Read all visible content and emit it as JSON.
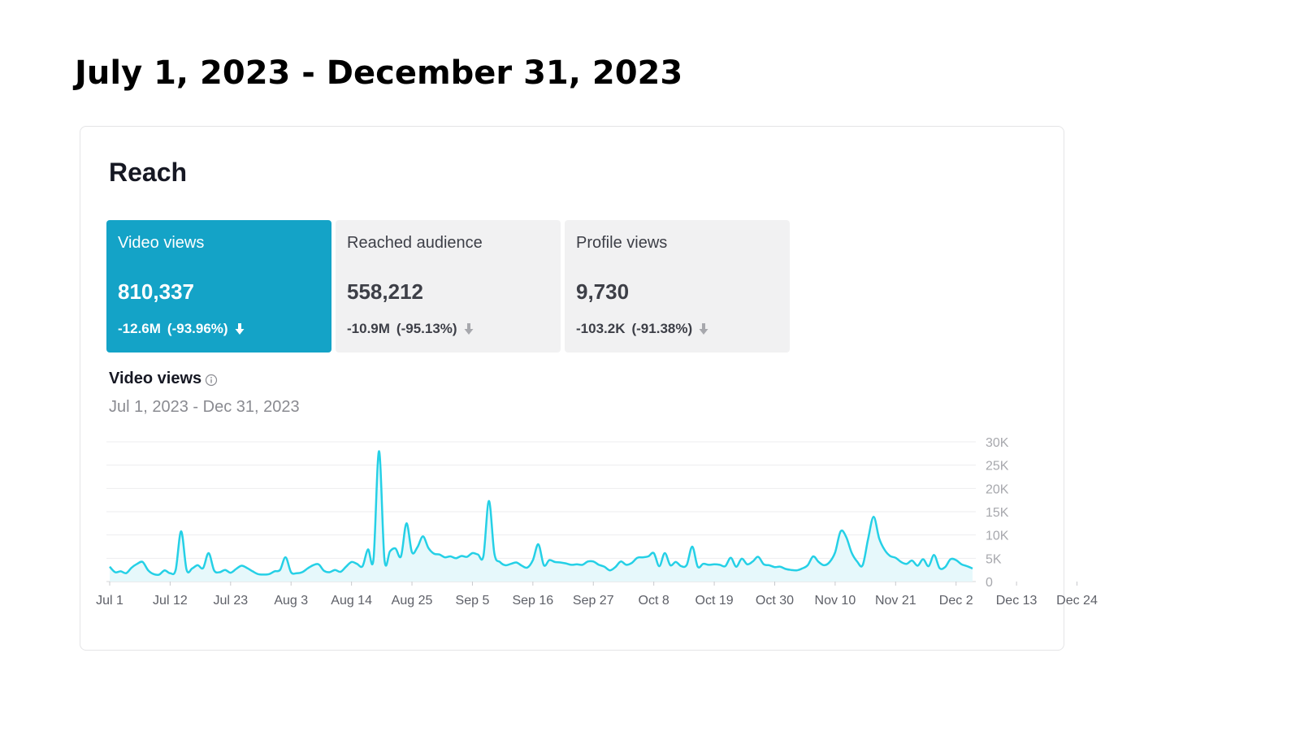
{
  "page": {
    "title": "July 1, 2023 - December 31, 2023"
  },
  "card": {
    "title": "Reach",
    "metrics": [
      {
        "label": "Video views",
        "value": "810,337",
        "change": "-12.6M",
        "change_pct": "(-93.96%)",
        "active": true
      },
      {
        "label": "Reached audience",
        "value": "558,212",
        "change": "-10.9M",
        "change_pct": "(-95.13%)",
        "active": false
      },
      {
        "label": "Profile views",
        "value": "9,730",
        "change": "-103.2K",
        "change_pct": "(-91.38%)",
        "active": false
      }
    ],
    "chart_title": "Video views",
    "chart_range": "Jul 1, 2023 - Dec 31, 2023"
  },
  "colors": {
    "accent": "#14a3c7",
    "line": "#25d0e6",
    "area": "#e6f8fb",
    "inactive_card": "#f1f1f2"
  },
  "icons": {
    "change_arrow": "arrow-down-icon",
    "info": "info-icon"
  },
  "chart_data": {
    "type": "area",
    "title": "Video views",
    "subtitle": "Jul 1, 2023 - Dec 31, 2023",
    "xlabel": "",
    "ylabel": "",
    "x_tick_labels": [
      "Jul 1",
      "Jul 12",
      "Jul 23",
      "Aug 3",
      "Aug 14",
      "Aug 25",
      "Sep 5",
      "Sep 16",
      "Sep 27",
      "Oct 8",
      "Oct 19",
      "Oct 30",
      "Nov 10",
      "Nov 21",
      "Dec 2",
      "Dec 13",
      "Dec 24"
    ],
    "y_tick_labels": [
      "0",
      "5K",
      "10K",
      "15K",
      "20K",
      "25K",
      "30K"
    ],
    "ylim": [
      0,
      30000
    ],
    "grid": true,
    "legend": "none",
    "series": [
      {
        "values": [
          3200,
          2000,
          2200,
          1800,
          3000,
          3800,
          4200,
          2400,
          1600,
          1500,
          2400,
          1800,
          2500,
          10800,
          2500,
          2800,
          3500,
          2900,
          6100,
          2400,
          2000,
          2500,
          1900,
          2700,
          3400,
          2900,
          2200,
          1600,
          1500,
          1600,
          2200,
          2500,
          5200,
          2000,
          1800,
          2000,
          2800,
          3500,
          3700,
          2300,
          2000,
          2500,
          2100,
          3200,
          4200,
          3800,
          3300,
          6900,
          4800,
          28000,
          4700,
          6500,
          7100,
          5400,
          12500,
          6300,
          7400,
          9700,
          7200,
          6000,
          5800,
          5200,
          5400,
          5000,
          5500,
          5300,
          6100,
          5800,
          5500,
          17300,
          6000,
          4200,
          3500,
          3800,
          4100,
          3400,
          3000,
          4600,
          8000,
          3500,
          4600,
          4200,
          4100,
          3900,
          3600,
          3700,
          3600,
          4300,
          4300,
          3600,
          3200,
          2400,
          3100,
          4300,
          3600,
          4000,
          5100,
          5200,
          5400,
          6100,
          3300,
          6100,
          3500,
          4200,
          3300,
          3600,
          7500,
          3200,
          3800,
          3600,
          3700,
          3600,
          3300,
          5100,
          3200,
          4900,
          3700,
          4300,
          5300,
          3700,
          3500,
          3100,
          3200,
          2700,
          2500,
          2400,
          2800,
          3500,
          5400,
          4200,
          3500,
          4200,
          6300,
          10800,
          9600,
          6200,
          4300,
          3500,
          9200,
          13900,
          9300,
          6800,
          5500,
          5100,
          4200,
          3800,
          4500,
          3400,
          4800,
          3300,
          5700,
          2900,
          3100,
          4800,
          4600,
          3700,
          3300,
          2800
        ]
      }
    ]
  }
}
